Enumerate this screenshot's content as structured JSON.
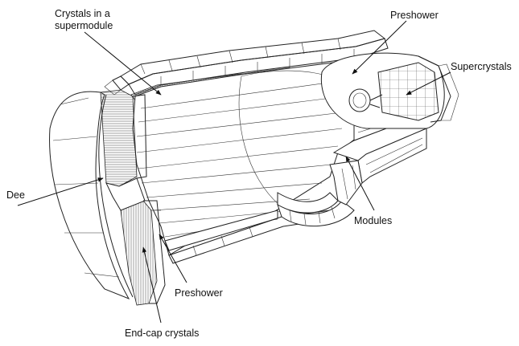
{
  "labels": {
    "crystals_supermodule": [
      "Crystals in a",
      "supermodule"
    ],
    "preshower_top": "Preshower",
    "supercrystals": "Supercrystals",
    "dee": "Dee",
    "modules": "Modules",
    "preshower_bottom": "Preshower",
    "endcap_crystals": "End-cap crystals"
  }
}
